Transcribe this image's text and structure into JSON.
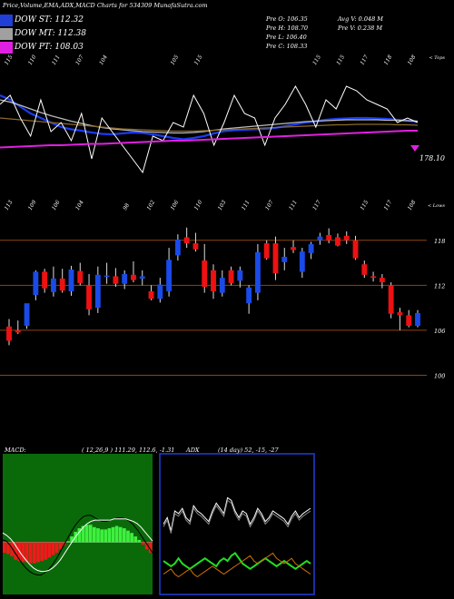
{
  "title": "Price,Volume,EMA,ADX,MACD Charts for 534309 MunafaSutra.com",
  "legend": [
    {
      "label": "DOW ST: 112.32",
      "color": "#1f3fd6"
    },
    {
      "label": "DOW MT: 112.38",
      "color": "#a0a0a0"
    },
    {
      "label": "DOW PT: 108.03",
      "color": "#e020e0"
    }
  ],
  "ohlc": {
    "open": "Pre  O: 106.35",
    "high": "Pre  H: 108.70",
    "low": "Pre  L: 106.40",
    "close": "Pre  C: 108.33",
    "avg_vol": "Avg V: 0.048  M",
    "pre_vol": "Pre  V: 0.238  M"
  },
  "top_labels": [
    "115",
    "110",
    "111",
    "107",
    "104",
    "",
    "",
    "105",
    "115",
    "",
    "",
    "",
    "",
    "115",
    "115",
    "117",
    "118",
    "108"
  ],
  "top_right": "< Tops",
  "bottom_labels": [
    "113",
    "109",
    "106",
    "104",
    "",
    "98",
    "102",
    "106",
    "110",
    "103",
    "111",
    "107",
    "111",
    "117",
    "",
    "115",
    "117",
    "108"
  ],
  "bottom_right": "< Lows",
  "ema_last_label": "178.10",
  "chart_data": {
    "type": "candlestick",
    "price_axis": {
      "ticks": [
        118,
        112,
        106,
        100
      ],
      "unit": "price"
    },
    "candles": [
      {
        "o": 104.6,
        "h": 107.5,
        "l": 104.0,
        "c": 106.5,
        "color": "red"
      },
      {
        "o": 106.0,
        "h": 107.3,
        "l": 105.5,
        "c": 105.7,
        "color": "red"
      },
      {
        "o": 106.6,
        "h": 109.5,
        "l": 106.2,
        "c": 109.6,
        "color": "blue"
      },
      {
        "o": 110.7,
        "h": 114.0,
        "l": 110.0,
        "c": 113.8,
        "color": "blue"
      },
      {
        "o": 113.8,
        "h": 114.2,
        "l": 111.0,
        "c": 111.6,
        "color": "red"
      },
      {
        "o": 111.1,
        "h": 114.5,
        "l": 110.5,
        "c": 112.9,
        "color": "blue"
      },
      {
        "o": 112.9,
        "h": 114.2,
        "l": 111.0,
        "c": 111.3,
        "color": "red"
      },
      {
        "o": 111.2,
        "h": 114.6,
        "l": 110.6,
        "c": 114.1,
        "color": "blue"
      },
      {
        "o": 113.9,
        "h": 115.0,
        "l": 112.0,
        "c": 112.3,
        "color": "red"
      },
      {
        "o": 112.0,
        "h": 113.5,
        "l": 108.0,
        "c": 108.8,
        "color": "red"
      },
      {
        "o": 109.0,
        "h": 114.5,
        "l": 108.3,
        "c": 113.4,
        "color": "blue"
      },
      {
        "o": 113.2,
        "h": 115.0,
        "l": 112.2,
        "c": 113.3,
        "color": "blue"
      },
      {
        "o": 113.2,
        "h": 114.3,
        "l": 111.8,
        "c": 112.2,
        "color": "red"
      },
      {
        "o": 112.2,
        "h": 114.0,
        "l": 111.5,
        "c": 113.5,
        "color": "blue"
      },
      {
        "o": 113.4,
        "h": 115.2,
        "l": 112.4,
        "c": 112.7,
        "color": "red"
      },
      {
        "o": 112.9,
        "h": 114.0,
        "l": 112.0,
        "c": 113.2,
        "color": "blue"
      },
      {
        "o": 111.2,
        "h": 112.0,
        "l": 110.0,
        "c": 110.2,
        "color": "red"
      },
      {
        "o": 110.2,
        "h": 113.0,
        "l": 109.7,
        "c": 112.1,
        "color": "blue"
      },
      {
        "o": 111.2,
        "h": 117.0,
        "l": 110.5,
        "c": 115.4,
        "color": "blue"
      },
      {
        "o": 116.0,
        "h": 118.8,
        "l": 115.3,
        "c": 118.1,
        "color": "blue"
      },
      {
        "o": 118.4,
        "h": 119.7,
        "l": 117.0,
        "c": 117.6,
        "color": "red"
      },
      {
        "o": 117.6,
        "h": 119.0,
        "l": 116.5,
        "c": 116.8,
        "color": "red"
      },
      {
        "o": 115.3,
        "h": 117.5,
        "l": 111.0,
        "c": 111.8,
        "color": "red"
      },
      {
        "o": 114.0,
        "h": 114.8,
        "l": 110.2,
        "c": 111.2,
        "color": "red"
      },
      {
        "o": 111.0,
        "h": 114.0,
        "l": 110.5,
        "c": 113.0,
        "color": "blue"
      },
      {
        "o": 114.0,
        "h": 114.5,
        "l": 112.0,
        "c": 112.3,
        "color": "red"
      },
      {
        "o": 112.6,
        "h": 114.5,
        "l": 111.7,
        "c": 114.0,
        "color": "blue"
      },
      {
        "o": 109.6,
        "h": 112.0,
        "l": 108.2,
        "c": 111.7,
        "color": "blue"
      },
      {
        "o": 111.0,
        "h": 117.5,
        "l": 110.0,
        "c": 116.4,
        "color": "blue"
      },
      {
        "o": 117.6,
        "h": 118.0,
        "l": 115.4,
        "c": 115.6,
        "color": "red"
      },
      {
        "o": 117.6,
        "h": 118.5,
        "l": 112.7,
        "c": 113.6,
        "color": "red"
      },
      {
        "o": 115.1,
        "h": 117.0,
        "l": 114.0,
        "c": 115.8,
        "color": "blue"
      },
      {
        "o": 117.1,
        "h": 118.0,
        "l": 116.3,
        "c": 116.7,
        "color": "red"
      },
      {
        "o": 113.8,
        "h": 117.0,
        "l": 113.0,
        "c": 116.5,
        "color": "blue"
      },
      {
        "o": 116.3,
        "h": 117.8,
        "l": 115.5,
        "c": 117.5,
        "color": "blue"
      },
      {
        "o": 118.0,
        "h": 119.0,
        "l": 117.4,
        "c": 118.5,
        "color": "blue"
      },
      {
        "o": 118.7,
        "h": 119.6,
        "l": 117.6,
        "c": 118.0,
        "color": "red"
      },
      {
        "o": 118.4,
        "h": 118.9,
        "l": 117.2,
        "c": 117.3,
        "color": "red"
      },
      {
        "o": 118.6,
        "h": 119.2,
        "l": 117.5,
        "c": 118.0,
        "color": "red"
      },
      {
        "o": 118.0,
        "h": 118.6,
        "l": 115.4,
        "c": 115.6,
        "color": "red"
      },
      {
        "o": 114.8,
        "h": 115.3,
        "l": 113.0,
        "c": 113.4,
        "color": "red"
      },
      {
        "o": 113.2,
        "h": 113.8,
        "l": 112.5,
        "c": 113.0,
        "color": "red"
      },
      {
        "o": 113.0,
        "h": 113.5,
        "l": 111.6,
        "c": 112.4,
        "color": "red"
      },
      {
        "o": 112.0,
        "h": 112.4,
        "l": 107.6,
        "c": 108.2,
        "color": "red"
      },
      {
        "o": 108.4,
        "h": 109.0,
        "l": 106.0,
        "c": 108.0,
        "color": "red"
      },
      {
        "o": 108.0,
        "h": 108.7,
        "l": 106.4,
        "c": 106.6,
        "color": "red"
      },
      {
        "o": 106.6,
        "h": 108.7,
        "l": 106.4,
        "c": 108.3,
        "color": "blue"
      }
    ],
    "ema_series": [
      {
        "name": "blue",
        "color": "#1a3cf0",
        "values": [
          122,
          121,
          119.5,
          118,
          117,
          116,
          115,
          114.5,
          114.2,
          113.8,
          113.5,
          113.4,
          113.6,
          113.8,
          113.7,
          113.4,
          113,
          112.6,
          112.3,
          112.6,
          113,
          113.6,
          114.1,
          114.3,
          114.4,
          114.5,
          114.6,
          114.8,
          115.2,
          115.6,
          116,
          116.3,
          116.6,
          116.8,
          116.9,
          117,
          117,
          116.9,
          116.8,
          116.6,
          116.4,
          116.2
        ]
      },
      {
        "name": "gray",
        "color": "#bbbbbb",
        "values": [
          121,
          120.5,
          119.8,
          119,
          118.2,
          117.5,
          116.9,
          116.3,
          115.8,
          115.3,
          114.9,
          114.6,
          114.4,
          114.2,
          114,
          113.9,
          113.8,
          113.7,
          113.7,
          113.8,
          114,
          114.3,
          114.6,
          114.8,
          115,
          115.2,
          115.4,
          115.6,
          115.8,
          116,
          116.2,
          116.3,
          116.4,
          116.5,
          116.6,
          116.6,
          116.6,
          116.6,
          116.5,
          116.5,
          116.4,
          116.3
        ]
      },
      {
        "name": "brown",
        "color": "#8a6a2a",
        "values": [
          117,
          116.8,
          116.6,
          116.4,
          116.2,
          116,
          115.8,
          115.6,
          115.4,
          115.2,
          115,
          114.8,
          114.6,
          114.5,
          114.4,
          114.3,
          114.2,
          114.1,
          114.1,
          114.1,
          114.2,
          114.3,
          114.4,
          114.5,
          114.6,
          114.7,
          114.8,
          114.9,
          115,
          115.1,
          115.2,
          115.3,
          115.4,
          115.5,
          115.5,
          115.6,
          115.6,
          115.6,
          115.6,
          115.5,
          115.5,
          115.4
        ]
      },
      {
        "name": "white",
        "color": "#ffffff",
        "values": [
          120,
          122,
          117,
          113,
          121,
          114,
          116,
          112,
          118,
          108,
          117,
          114,
          111,
          108,
          105,
          113,
          112,
          116,
          115,
          122,
          118,
          111,
          116,
          122,
          118,
          117,
          111,
          117,
          120,
          124,
          120,
          115,
          121,
          119,
          124,
          123,
          121,
          120,
          119,
          116,
          117,
          116
        ]
      },
      {
        "name": "magenta",
        "color": "#e020e0",
        "values": [
          110.5,
          110.6,
          110.7,
          110.8,
          110.9,
          111,
          111,
          111.1,
          111.2,
          111.3,
          111.3,
          111.4,
          111.5,
          111.6,
          111.7,
          111.8,
          111.9,
          112,
          112,
          112.1,
          112.2,
          112.3,
          112.4,
          112.5,
          112.6,
          112.7,
          112.8,
          112.9,
          113,
          113.1,
          113.2,
          113.3,
          113.4,
          113.5,
          113.6,
          113.7,
          113.8,
          113.9,
          114,
          114.1,
          114.2,
          114.2
        ]
      }
    ],
    "macd": {
      "title": "MACD:",
      "params": "( 12,26,9 ) 111.29,  112.6,  -1.31",
      "histogram": [
        -0.9,
        -1.0,
        -1.2,
        -1.5,
        -1.6,
        -1.7,
        -1.7,
        -1.8,
        -1.8,
        -1.7,
        -1.6,
        -1.5,
        -1.3,
        -1.1,
        -0.9,
        -0.6,
        -0.3,
        0.1,
        0.5,
        0.9,
        1.2,
        1.4,
        1.5,
        1.5,
        1.3,
        1.2,
        1.1,
        1.1,
        1.2,
        1.3,
        1.4,
        1.3,
        1.2,
        1.0,
        0.8,
        0.5,
        0.2,
        -0.2,
        -0.6,
        -0.9
      ],
      "macd_line": [
        0.2,
        0.1,
        -0.3,
        -0.8,
        -1.3,
        -1.8,
        -2.2,
        -2.5,
        -2.7,
        -2.8,
        -2.8,
        -2.6,
        -2.3,
        -1.9,
        -1.4,
        -0.8,
        -0.2,
        0.4,
        1.0,
        1.5,
        1.9,
        2.2,
        2.3,
        2.3,
        2.1,
        1.9,
        1.8,
        1.8,
        1.9,
        2.0,
        2.1,
        2.1,
        2.0,
        1.8,
        1.5,
        1.1,
        0.6,
        0.1,
        -0.4,
        -0.9
      ],
      "signal_line": [
        0.8,
        0.6,
        0.3,
        -0.1,
        -0.6,
        -1.1,
        -1.5,
        -1.9,
        -2.2,
        -2.4,
        -2.5,
        -2.5,
        -2.4,
        -2.2,
        -1.9,
        -1.5,
        -1.0,
        -0.5,
        0.0,
        0.5,
        0.9,
        1.3,
        1.6,
        1.8,
        1.9,
        1.9,
        1.9,
        1.9,
        1.9,
        2.0,
        2.0,
        2.0,
        2.0,
        1.9,
        1.8,
        1.6,
        1.3,
        0.9,
        0.5,
        0.1
      ]
    },
    "adx": {
      "title": "ADX",
      "params": "(14 day) 52,  -15,  -27",
      "adx_line": [
        50,
        55,
        45,
        60,
        58,
        62,
        55,
        52,
        64,
        60,
        58,
        55,
        52,
        60,
        66,
        62,
        58,
        70,
        68,
        60,
        55,
        60,
        58,
        50,
        55,
        62,
        58,
        52,
        55,
        60,
        58,
        56,
        54,
        50,
        56,
        60,
        55,
        58,
        60,
        62
      ],
      "adx_line2": [
        48,
        53,
        43,
        58,
        56,
        60,
        53,
        50,
        62,
        58,
        56,
        53,
        50,
        58,
        64,
        60,
        56,
        68,
        66,
        58,
        53,
        58,
        56,
        48,
        53,
        60,
        56,
        50,
        53,
        58,
        56,
        54,
        52,
        48,
        54,
        58,
        53,
        56,
        58,
        60
      ],
      "plus_di": [
        22,
        20,
        18,
        20,
        24,
        20,
        18,
        16,
        18,
        20,
        22,
        24,
        22,
        20,
        18,
        22,
        24,
        22,
        26,
        28,
        24,
        20,
        18,
        16,
        18,
        20,
        22,
        24,
        22,
        20,
        18,
        20,
        22,
        20,
        18,
        16,
        18,
        20,
        22,
        20
      ],
      "minus_di": [
        12,
        14,
        16,
        12,
        10,
        12,
        14,
        16,
        12,
        10,
        12,
        14,
        16,
        18,
        16,
        14,
        12,
        14,
        16,
        18,
        20,
        22,
        24,
        26,
        22,
        20,
        22,
        24,
        26,
        28,
        24,
        22,
        20,
        22,
        24,
        20,
        18,
        16,
        14,
        12
      ]
    }
  }
}
